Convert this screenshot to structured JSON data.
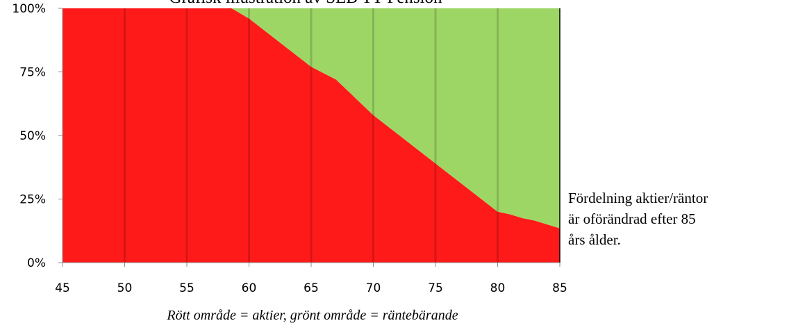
{
  "chart_data": {
    "type": "area",
    "title": "Grafisk illustration av SEB TT-Pension",
    "x": [
      45,
      50,
      55,
      58.6,
      60,
      65,
      67,
      70,
      75,
      80,
      81,
      82,
      83,
      84,
      85
    ],
    "series": [
      {
        "name": "aktier",
        "color": "#ff1a1a",
        "values": [
          100,
          100,
          100,
          100,
          96,
          77,
          72,
          58,
          39,
          20,
          19,
          17.5,
          16.5,
          15,
          13.5
        ]
      },
      {
        "name": "räntebärande",
        "color": "#9ed666",
        "values": [
          0,
          0,
          0,
          0,
          4,
          23,
          28,
          42,
          61,
          80,
          81,
          82.5,
          83.5,
          85,
          86.5
        ]
      }
    ],
    "xticks": [
      "45",
      "50",
      "55",
      "60",
      "65",
      "70",
      "75",
      "80",
      "85"
    ],
    "yticks": [
      "0%",
      "25%",
      "50%",
      "75%",
      "100%"
    ],
    "xlim": [
      45,
      85
    ],
    "ylim": [
      0,
      100
    ],
    "stacked": true,
    "grid": "vertical",
    "side_note": "Fördelning aktier/räntor\när oförändrad efter 85\nårs ålder.",
    "caption": "Rött område = aktier, grönt område = räntebärande"
  }
}
